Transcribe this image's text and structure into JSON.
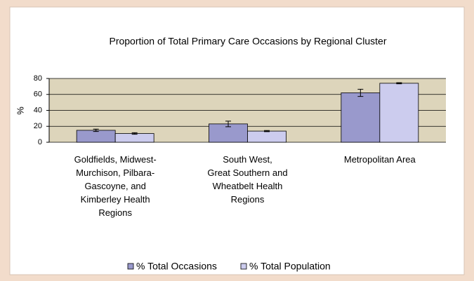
{
  "chart_data": {
    "type": "bar",
    "title": "Proportion of Total Primary Care Occasions by Regional Cluster",
    "y_label": "%",
    "categories": [
      "Goldfields, Midwest-\nMurchison, Pilbara-\nGascoyne, and\nKimberley Health\nRegions",
      "South West,\nGreat Southern and\nWheatbelt Health\nRegions",
      "Metropolitan Area"
    ],
    "series": [
      {
        "name": "% Total Occasions",
        "color": "#9999cc",
        "values": [
          15,
          23,
          62
        ],
        "errors": [
          1.5,
          3.5,
          4.5
        ]
      },
      {
        "name": "% Total Population",
        "color": "#ccccee",
        "values": [
          11,
          14,
          74
        ],
        "errors": [
          1,
          0.7,
          0.7
        ]
      }
    ],
    "ylim": [
      0,
      80
    ],
    "yticks": [
      0,
      20,
      40,
      60,
      80
    ],
    "grid": true,
    "legend": "bottom"
  }
}
